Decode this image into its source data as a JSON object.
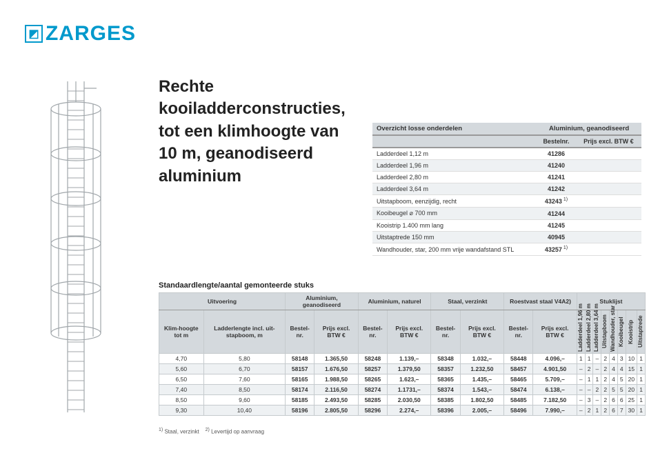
{
  "logo": {
    "text": "ZARGES"
  },
  "title": "Rechte kooiladderconstructies, tot een klimhoogte van 10 m, geanodiseerd aluminium",
  "parts": {
    "header_left": "Overzicht losse onderdelen",
    "header_right": "Aluminium, geanodiseerd",
    "col_bestelnr": "Bestelnr.",
    "col_prijs": "Prijs excl. BTW €",
    "rows": [
      {
        "name": "Ladderdeel 1,12 m",
        "nr": "41286",
        "prijs": ""
      },
      {
        "name": "Ladderdeel 1,96 m",
        "nr": "41240",
        "prijs": ""
      },
      {
        "name": "Ladderdeel 2,80 m",
        "nr": "41241",
        "prijs": ""
      },
      {
        "name": "Ladderdeel 3,64 m",
        "nr": "41242",
        "prijs": ""
      },
      {
        "name": "Uitstapboom, eenzijdig, recht",
        "nr": "43243",
        "sup": "1)",
        "prijs": ""
      },
      {
        "name": "Kooibeugel ⌀ 700 mm",
        "nr": "41244",
        "prijs": ""
      },
      {
        "name": "Kooistrip 1.400 mm lang",
        "nr": "41245",
        "prijs": ""
      },
      {
        "name": "Uitstaptrede 150 mm",
        "nr": "40945",
        "prijs": ""
      },
      {
        "name": "Wandhouder, star, 200 mm vrije wandafstand STL",
        "nr": "43257",
        "sup": "1)",
        "prijs": ""
      }
    ]
  },
  "main_caption": "Standaardlengte/aantal gemonteerde stuks",
  "main": {
    "groups": {
      "uitvoering": "Uitvoering",
      "alu_gean": "Aluminium, geanodiseerd",
      "alu_nat": "Aluminium, naturel",
      "staal": "Staal, verzinkt",
      "rvs": "Roestvast staal V4A",
      "rvs_sup": "2)",
      "stuklijst": "Stuklijst"
    },
    "cols": {
      "klimhoogte": "Klim-hoogte tot m",
      "ladderlengte": "Ladderlengte incl. uit-stapboom, m",
      "bestelnr": "Bestel-nr.",
      "prijs": "Prijs excl. BTW €",
      "ld196": "Ladderdeel 1,96 m",
      "ld280": "Ladderdeel 2,80 m",
      "ld364": "Ladderdeel 3,64 m",
      "uitstapboom": "Uitstapboom",
      "wandhouder": "Wandhouder, star",
      "kooibeugel": "Kooibeugel",
      "kooistrip": "Kooistrip",
      "uitstaptrede": "Uitstaptrede"
    },
    "rows": [
      {
        "km": "4,70",
        "ll": "5,80",
        "b1": "58148",
        "p1": "1.365,50",
        "b2": "58248",
        "p2": "1.139,–",
        "b3": "58348",
        "p3": "1.032,–",
        "b4": "58448",
        "p4": "4.096,–",
        "s": [
          "1",
          "1",
          "–",
          "2",
          "4",
          "3",
          "10",
          "1"
        ]
      },
      {
        "km": "5,60",
        "ll": "6,70",
        "b1": "58157",
        "p1": "1.676,50",
        "b2": "58257",
        "p2": "1.379,50",
        "b3": "58357",
        "p3": "1.232,50",
        "b4": "58457",
        "p4": "4.901,50",
        "s": [
          "–",
          "2",
          "–",
          "2",
          "4",
          "4",
          "15",
          "1"
        ]
      },
      {
        "km": "6,50",
        "ll": "7,60",
        "b1": "58165",
        "p1": "1.988,50",
        "b2": "58265",
        "p2": "1.623,–",
        "b3": "58365",
        "p3": "1.435,–",
        "b4": "58465",
        "p4": "5.709,–",
        "s": [
          "–",
          "1",
          "1",
          "2",
          "4",
          "5",
          "20",
          "1"
        ]
      },
      {
        "km": "7,40",
        "ll": "8,50",
        "b1": "58174",
        "p1": "2.116,50",
        "b2": "58274",
        "p2": "1.1731,–",
        "b3": "58374",
        "p3": "1.543,–",
        "b4": "58474",
        "p4": "6.138,–",
        "s": [
          "–",
          "–",
          "2",
          "2",
          "5",
          "5",
          "20",
          "1"
        ]
      },
      {
        "km": "8,50",
        "ll": "9,60",
        "b1": "58185",
        "p1": "2.493,50",
        "b2": "58285",
        "p2": "2.030,50",
        "b3": "58385",
        "p3": "1.802,50",
        "b4": "58485",
        "p4": "7.182,50",
        "s": [
          "–",
          "3",
          "–",
          "2",
          "6",
          "6",
          "25",
          "1"
        ]
      },
      {
        "km": "9,30",
        "ll": "10,40",
        "b1": "58196",
        "p1": "2.805,50",
        "b2": "58296",
        "p2": "2.274,–",
        "b3": "58396",
        "p3": "2.005,–",
        "b4": "58496",
        "p4": "7.990,–",
        "s": [
          "–",
          "2",
          "1",
          "2",
          "6",
          "7",
          "30",
          "1"
        ]
      }
    ]
  },
  "footnotes": {
    "f1_sup": "1)",
    "f1": "Staal, verzinkt",
    "f2_sup": "2)",
    "f2": "Levertijd op aanvraag"
  },
  "colors": {
    "brand": "#0099cc",
    "hd_bg": "#d4d9dd",
    "alt_bg": "#eef1f3",
    "border": "#c5cacd"
  }
}
